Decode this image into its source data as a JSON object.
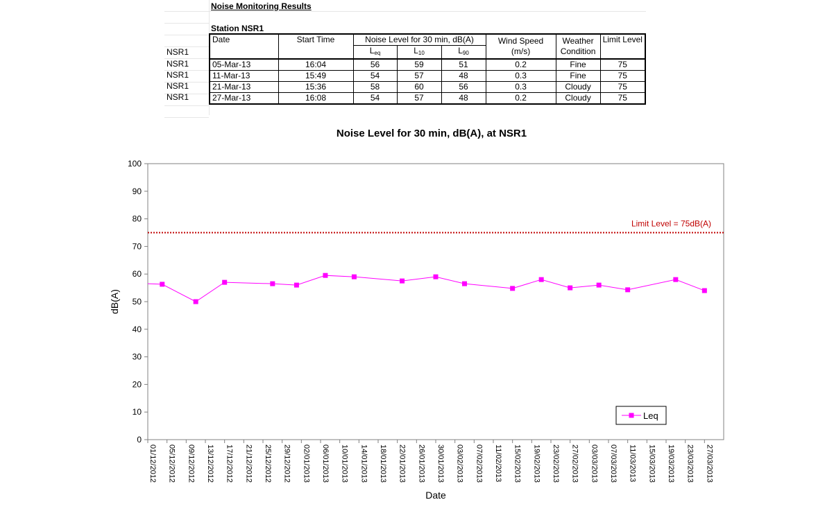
{
  "report": {
    "title": "Noise Monitoring Results",
    "station": "Station NSR1"
  },
  "table": {
    "headers": {
      "date": "Date",
      "start_time": "Start Time",
      "noise_group": "Noise Level for 30 min, dB(A)",
      "leq": "L",
      "leq_sub": "eq",
      "l10": "L",
      "l10_sub": "10",
      "l90": "L",
      "l90_sub": "90",
      "wind_line1": "Wind Speed",
      "wind_line2": "(m/s)",
      "weather_line1": "Weather",
      "weather_line2": "Condition",
      "limit": "Limit Level"
    },
    "header_row_label": "NSR1",
    "rows": [
      {
        "station": "NSR1",
        "date": "05-Mar-13",
        "time": "16:04",
        "leq": "56",
        "l10": "59",
        "l90": "51",
        "wind": "0.2",
        "weather": "Fine",
        "limit": "75"
      },
      {
        "station": "NSR1",
        "date": "11-Mar-13",
        "time": "15:49",
        "leq": "54",
        "l10": "57",
        "l90": "48",
        "wind": "0.3",
        "weather": "Fine",
        "limit": "75"
      },
      {
        "station": "NSR1",
        "date": "21-Mar-13",
        "time": "15:36",
        "leq": "58",
        "l10": "60",
        "l90": "56",
        "wind": "0.3",
        "weather": "Cloudy",
        "limit": "75"
      },
      {
        "station": "NSR1",
        "date": "27-Mar-13",
        "time": "16:08",
        "leq": "54",
        "l10": "57",
        "l90": "48",
        "wind": "0.2",
        "weather": "Cloudy",
        "limit": "75"
      }
    ]
  },
  "chart_data": {
    "type": "line",
    "title": "Noise Level for 30 min, dB(A), at NSR1",
    "xlabel": "Date",
    "ylabel": "dB(A)",
    "ylim": [
      0,
      100
    ],
    "yticks": [
      0,
      10,
      20,
      30,
      40,
      50,
      60,
      70,
      80,
      90,
      100
    ],
    "xlim": [
      "01/12/2012",
      "31/03/2013"
    ],
    "xticks": [
      "01/12/2012",
      "05/12/2012",
      "09/12/2012",
      "13/12/2012",
      "17/12/2012",
      "21/12/2012",
      "25/12/2012",
      "29/12/2012",
      "02/01/2013",
      "06/01/2013",
      "10/01/2013",
      "14/01/2013",
      "18/01/2013",
      "22/01/2013",
      "26/01/2013",
      "30/01/2013",
      "03/02/2013",
      "07/02/2013",
      "11/02/2013",
      "15/02/2013",
      "19/02/2013",
      "23/02/2013",
      "27/02/2013",
      "03/03/2013",
      "07/03/2013",
      "11/03/2013",
      "15/03/2013",
      "19/03/2013",
      "23/03/2013",
      "27/03/2013"
    ],
    "grid": false,
    "legend_position": "bottom-right",
    "series": [
      {
        "name": "Leq",
        "color": "#ff00ff",
        "line_start_value": 56.5,
        "points": [
          {
            "x": "04/12/2012",
            "y": 56.3
          },
          {
            "x": "11/12/2012",
            "y": 50
          },
          {
            "x": "17/12/2012",
            "y": 57
          },
          {
            "x": "27/12/2012",
            "y": 56.5
          },
          {
            "x": "01/01/2013",
            "y": 56
          },
          {
            "x": "07/01/2013",
            "y": 59.5
          },
          {
            "x": "13/01/2013",
            "y": 59
          },
          {
            "x": "23/01/2013",
            "y": 57.5
          },
          {
            "x": "30/01/2013",
            "y": 59
          },
          {
            "x": "05/02/2013",
            "y": 56.5
          },
          {
            "x": "15/02/2013",
            "y": 54.8
          },
          {
            "x": "21/02/2013",
            "y": 58
          },
          {
            "x": "27/02/2013",
            "y": 55
          },
          {
            "x": "05/03/2013",
            "y": 56
          },
          {
            "x": "11/03/2013",
            "y": 54.3
          },
          {
            "x": "21/03/2013",
            "y": 58
          },
          {
            "x": "27/03/2013",
            "y": 54
          }
        ]
      }
    ],
    "annotations": [
      {
        "text": "Limit Level = 75dB(A)",
        "y": 75,
        "color": "#c00000",
        "style": "dotted"
      }
    ]
  }
}
